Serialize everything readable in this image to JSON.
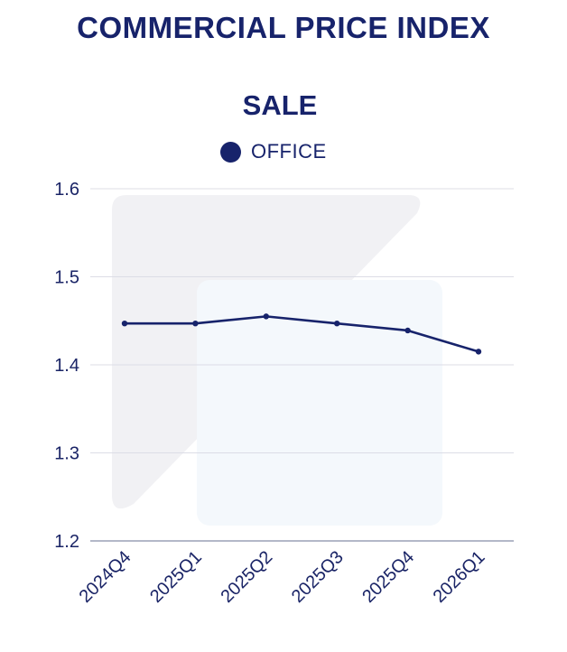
{
  "header": {
    "title": "COMMERCIAL PRICE INDEX"
  },
  "chart_data": {
    "type": "line",
    "title": "SALE",
    "xlabel": "",
    "ylabel": "",
    "categories": [
      "2024Q4",
      "2025Q1",
      "2025Q2",
      "2025Q3",
      "2025Q4",
      "2026Q1"
    ],
    "series": [
      {
        "name": "OFFICE",
        "values": [
          1.447,
          1.447,
          1.455,
          1.447,
          1.439,
          1.415
        ]
      }
    ],
    "ylim": [
      1.2,
      1.6
    ],
    "yticks": [
      "1.6",
      "1.5",
      "1.4",
      "1.3",
      "1.2"
    ],
    "grid": true,
    "legend_position": "top-center",
    "colors": {
      "line": "#17236b",
      "grid": "#dcdde6",
      "axis": "#9aa0b6",
      "watermark_gray": "#f1f1f4",
      "watermark_blue": "#f4f8fc"
    }
  }
}
